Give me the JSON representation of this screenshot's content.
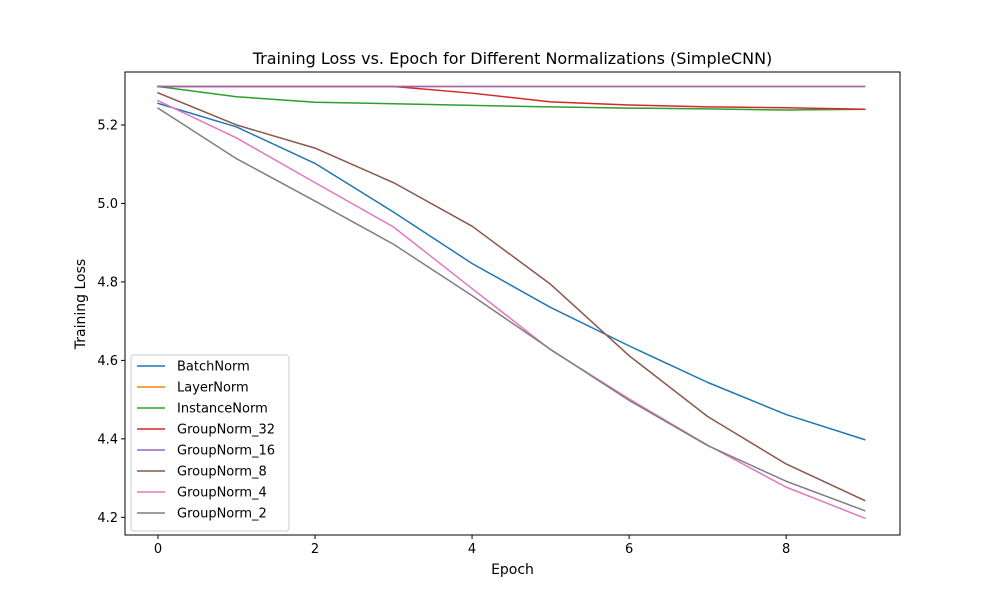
{
  "chart_data": {
    "type": "line",
    "title": "Training Loss vs. Epoch for Different Normalizations (SimpleCNN)",
    "xlabel": "Epoch",
    "ylabel": "Training Loss",
    "xlim": [
      -0.42,
      9.45
    ],
    "ylim": [
      4.155,
      5.335
    ],
    "xticks": [
      0,
      2,
      4,
      6,
      8
    ],
    "yticks": [
      4.2,
      4.4,
      4.6,
      4.8,
      5.0,
      5.2
    ],
    "xtick_labels": [
      "0",
      "2",
      "4",
      "6",
      "8"
    ],
    "ytick_labels": [
      "4.2",
      "4.4",
      "4.6",
      "4.8",
      "5.0",
      "5.2"
    ],
    "grid": false,
    "legend_position": "lower-left",
    "x": [
      0,
      1,
      2,
      3,
      4,
      5,
      6,
      7,
      8,
      9
    ],
    "series": [
      {
        "name": "BatchNorm",
        "color": "#1f77b4",
        "values": [
          5.255,
          5.195,
          5.102,
          4.978,
          4.847,
          4.735,
          4.637,
          4.544,
          4.462,
          4.398
        ]
      },
      {
        "name": "LayerNorm",
        "color": "#ff7f0e",
        "values": [
          5.298,
          5.298,
          5.298,
          5.298,
          5.298,
          5.298,
          5.298,
          5.298,
          5.298,
          5.298
        ]
      },
      {
        "name": "InstanceNorm",
        "color": "#2ca02c",
        "values": [
          5.298,
          5.272,
          5.258,
          5.254,
          5.25,
          5.246,
          5.243,
          5.241,
          5.238,
          5.24
        ]
      },
      {
        "name": "GroupNorm_32",
        "color": "#d62728",
        "values": [
          5.298,
          5.298,
          5.298,
          5.298,
          5.281,
          5.259,
          5.251,
          5.246,
          5.244,
          5.24
        ]
      },
      {
        "name": "GroupNorm_16",
        "color": "#9467bd",
        "values": [
          5.298,
          5.298,
          5.298,
          5.298,
          5.298,
          5.298,
          5.298,
          5.298,
          5.298,
          5.298
        ]
      },
      {
        "name": "GroupNorm_8",
        "color": "#8c564b",
        "values": [
          5.282,
          5.2,
          5.141,
          5.053,
          4.942,
          4.794,
          4.612,
          4.457,
          4.336,
          4.243
        ]
      },
      {
        "name": "GroupNorm_4",
        "color": "#e377c2",
        "values": [
          5.262,
          5.167,
          5.053,
          4.94,
          4.783,
          4.627,
          4.502,
          4.384,
          4.277,
          4.198
        ]
      },
      {
        "name": "GroupNorm_2",
        "color": "#7f7f7f",
        "values": [
          5.243,
          5.114,
          5.006,
          4.896,
          4.765,
          4.628,
          4.498,
          4.383,
          4.292,
          4.217
        ]
      }
    ]
  }
}
